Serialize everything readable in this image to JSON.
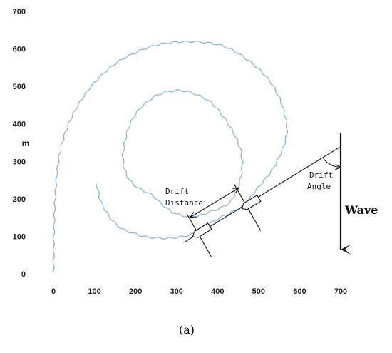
{
  "chart_data": {
    "type": "line",
    "title": "",
    "xlabel": "",
    "ylabel": "m",
    "xlim": [
      0,
      700
    ],
    "ylim": [
      0,
      700
    ],
    "x_ticks": [
      "0",
      "100",
      "200",
      "300",
      "400",
      "500",
      "600",
      "700"
    ],
    "y_ticks": [
      "0",
      "100",
      "200",
      "300",
      "400",
      "500",
      "600",
      "700"
    ],
    "grid": false,
    "series": [
      {
        "name": "",
        "color": "#8fb4d9",
        "style": "wavy",
        "points": [
          [
            105,
            240
          ],
          [
            115,
            195
          ],
          [
            135,
            155
          ],
          [
            160,
            125
          ],
          [
            190,
            110
          ],
          [
            230,
            98
          ],
          [
            280,
            95
          ],
          [
            330,
            103
          ],
          [
            360,
            118
          ],
          [
            395,
            143
          ],
          [
            425,
            160
          ],
          [
            460,
            180
          ],
          [
            495,
            225
          ],
          [
            540,
            290
          ],
          [
            568,
            370
          ],
          [
            560,
            440
          ],
          [
            530,
            510
          ],
          [
            480,
            565
          ],
          [
            420,
            605
          ],
          [
            360,
            618
          ],
          [
            300,
            618
          ],
          [
            250,
            610
          ],
          [
            200,
            590
          ],
          [
            150,
            560
          ],
          [
            100,
            510
          ],
          [
            60,
            450
          ],
          [
            30,
            380
          ],
          [
            12,
            300
          ],
          [
            4,
            200
          ],
          [
            1,
            100
          ],
          [
            0,
            0
          ]
        ]
      },
      {
        "name": "",
        "color": "#8fb4d9",
        "style": "wavy",
        "points": [
          [
            340,
            150
          ],
          [
            300,
            160
          ],
          [
            270,
            180
          ],
          [
            240,
            210
          ],
          [
            205,
            230
          ],
          [
            180,
            260
          ],
          [
            170,
            300
          ],
          [
            172,
            340
          ],
          [
            185,
            395
          ],
          [
            210,
            440
          ],
          [
            250,
            475
          ],
          [
            290,
            488
          ],
          [
            330,
            485
          ],
          [
            380,
            460
          ],
          [
            420,
            410
          ],
          [
            450,
            350
          ],
          [
            460,
            300
          ],
          [
            455,
            250
          ],
          [
            440,
            210
          ],
          [
            430,
            190
          ],
          [
            405,
            175
          ],
          [
            380,
            165
          ],
          [
            345,
            150
          ]
        ]
      }
    ],
    "annotations": {
      "drift_distance_label": [
        "Drift",
        "Distance"
      ],
      "drift_angle_label": [
        "Drift",
        "Angle"
      ],
      "wave_label": "Wave",
      "caption": "(a)",
      "drift_distance_arrow": {
        "from": [
          335,
          152
        ],
        "to": [
          450,
          228
        ]
      },
      "ship_positions": [
        [
          360,
          113
        ],
        [
          480,
          188
        ]
      ],
      "drift_line": {
        "from": [
          320,
          85
        ],
        "to": [
          698,
          338
        ]
      },
      "heading_lines": [
        {
          "from": [
            325,
            160
          ],
          "to": [
            385,
            45
          ]
        },
        {
          "from": [
            440,
            240
          ],
          "to": [
            505,
            115
          ]
        }
      ],
      "wave_arrow": {
        "x": 700,
        "from_y": 375,
        "to_y": 65
      },
      "drift_angle_arc_center": [
        698,
        338
      ]
    }
  }
}
